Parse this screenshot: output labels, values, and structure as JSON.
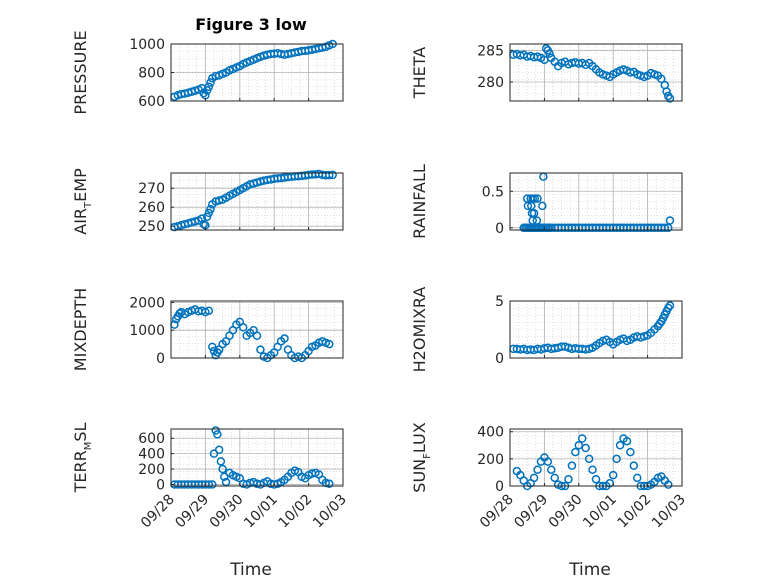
{
  "title": "Figure 3 low",
  "colors": {
    "series": "#0072BD",
    "axis": "#262626",
    "grid": "#c8c8c8",
    "background": "#ffffff"
  },
  "chart_data": [
    {
      "type": "scatter",
      "name": "PRESSURE",
      "ylabel": {
        "main": "PRESSURE",
        "sub": ""
      },
      "xlim": [
        0,
        5
      ],
      "ylim": [
        600,
        1000
      ],
      "yticks": [
        600,
        800,
        1000
      ],
      "ytick_labels": [
        "600",
        "800",
        "1000"
      ],
      "xtick_labels": [],
      "xlabel": "",
      "grid": true,
      "x": [
        0.1,
        0.2,
        0.3,
        0.4,
        0.5,
        0.6,
        0.7,
        0.8,
        0.9,
        0.95,
        1.0,
        1.05,
        1.1,
        1.15,
        1.2,
        1.3,
        1.4,
        1.5,
        1.6,
        1.7,
        1.8,
        1.9,
        2.0,
        2.1,
        2.2,
        2.3,
        2.4,
        2.5,
        2.6,
        2.7,
        2.8,
        2.9,
        3.0,
        3.1,
        3.2,
        3.3,
        3.4,
        3.5,
        3.6,
        3.7,
        3.8,
        3.9,
        4.0,
        4.1,
        4.2,
        4.3,
        4.4,
        4.5,
        4.6,
        4.7
      ],
      "y": [
        630,
        640,
        648,
        652,
        658,
        665,
        672,
        680,
        690,
        655,
        640,
        675,
        700,
        730,
        760,
        775,
        780,
        790,
        800,
        815,
        825,
        835,
        845,
        860,
        870,
        880,
        890,
        900,
        910,
        918,
        925,
        930,
        932,
        935,
        930,
        925,
        930,
        935,
        940,
        945,
        950,
        952,
        955,
        960,
        965,
        970,
        975,
        980,
        990,
        1000
      ]
    },
    {
      "type": "scatter",
      "name": "THETA",
      "ylabel": {
        "main": "THETA",
        "sub": ""
      },
      "xlim": [
        0,
        5
      ],
      "ylim": [
        277,
        286
      ],
      "yticks": [
        280,
        285
      ],
      "ytick_labels": [
        "280",
        "285"
      ],
      "xtick_labels": [],
      "xlabel": "",
      "grid": true,
      "x": [
        0.1,
        0.2,
        0.3,
        0.4,
        0.5,
        0.6,
        0.7,
        0.8,
        0.9,
        1.0,
        1.05,
        1.1,
        1.15,
        1.2,
        1.3,
        1.4,
        1.5,
        1.6,
        1.7,
        1.8,
        1.9,
        2.0,
        2.1,
        2.2,
        2.3,
        2.4,
        2.5,
        2.6,
        2.7,
        2.8,
        2.9,
        3.0,
        3.1,
        3.2,
        3.3,
        3.4,
        3.5,
        3.6,
        3.7,
        3.8,
        3.9,
        4.0,
        4.1,
        4.2,
        4.3,
        4.4,
        4.5,
        4.55,
        4.6,
        4.65
      ],
      "y": [
        284.3,
        284.4,
        284.2,
        284.3,
        284.0,
        284.1,
        283.9,
        284.0,
        283.8,
        283.5,
        285.3,
        285.0,
        284.5,
        283.8,
        283.2,
        282.5,
        283.0,
        283.2,
        282.8,
        283.0,
        283.1,
        282.9,
        283.0,
        282.7,
        283.0,
        282.5,
        282.0,
        281.5,
        281.2,
        281.0,
        280.8,
        281.2,
        281.5,
        281.8,
        282.0,
        281.8,
        281.5,
        281.6,
        281.2,
        281.0,
        280.8,
        281.0,
        281.4,
        281.2,
        281.0,
        280.5,
        279.5,
        278.5,
        277.8,
        277.4
      ]
    },
    {
      "type": "scatter",
      "name": "AIR_TEMP",
      "ylabel": {
        "main": "AIR",
        "sub": "T",
        "rest": "EMP"
      },
      "xlim": [
        0,
        5
      ],
      "ylim": [
        248,
        278
      ],
      "yticks": [
        250,
        260,
        270
      ],
      "ytick_labels": [
        "250",
        "260",
        "270"
      ],
      "xtick_labels": [],
      "xlabel": "",
      "grid": true,
      "x": [
        0.1,
        0.2,
        0.3,
        0.4,
        0.5,
        0.6,
        0.7,
        0.8,
        0.9,
        0.95,
        1.0,
        1.05,
        1.1,
        1.15,
        1.2,
        1.3,
        1.4,
        1.5,
        1.6,
        1.7,
        1.8,
        1.9,
        2.0,
        2.1,
        2.2,
        2.3,
        2.4,
        2.5,
        2.6,
        2.7,
        2.8,
        2.9,
        3.0,
        3.1,
        3.2,
        3.3,
        3.4,
        3.5,
        3.6,
        3.7,
        3.8,
        3.9,
        4.0,
        4.1,
        4.2,
        4.3,
        4.4,
        4.5,
        4.6,
        4.7
      ],
      "y": [
        249.5,
        250.0,
        250.5,
        251.0,
        251.5,
        252.0,
        252.5,
        253.0,
        254.0,
        251.0,
        250.5,
        255.0,
        257.0,
        259.0,
        261.5,
        263.0,
        263.5,
        264.0,
        265.0,
        266.0,
        267.0,
        268.0,
        269.0,
        270.0,
        271.0,
        272.0,
        272.5,
        273.0,
        273.5,
        274.0,
        274.3,
        274.6,
        275.0,
        275.2,
        275.3,
        275.6,
        275.8,
        276.0,
        276.2,
        276.3,
        276.5,
        276.7,
        277.0,
        277.2,
        277.3,
        277.5,
        277.0,
        276.8,
        276.9,
        277.0
      ]
    },
    {
      "type": "scatter",
      "name": "RAINFALL",
      "ylabel": {
        "main": "RAINFALL",
        "sub": ""
      },
      "xlim": [
        0,
        5
      ],
      "ylim": [
        -0.03,
        0.75
      ],
      "yticks": [
        0,
        0.5
      ],
      "ytick_labels": [
        "0",
        "0.5"
      ],
      "xtick_labels": [],
      "xlabel": "",
      "grid": true,
      "x": [
        0.4,
        0.45,
        0.5,
        0.55,
        0.6,
        0.65,
        0.7,
        0.75,
        0.8,
        0.85,
        0.9,
        0.95,
        1.0,
        1.05,
        1.1,
        1.15,
        1.2,
        1.3,
        1.4,
        1.5,
        1.6,
        1.7,
        1.8,
        1.9,
        2.0,
        2.1,
        2.2,
        2.3,
        2.4,
        2.5,
        2.6,
        2.7,
        2.8,
        2.9,
        3.0,
        3.1,
        3.2,
        3.3,
        3.4,
        3.5,
        3.6,
        3.7,
        3.8,
        3.9,
        4.0,
        4.1,
        4.2,
        4.3,
        4.4,
        4.5,
        4.6,
        4.65,
        0.5,
        0.52,
        0.6,
        0.62,
        0.64,
        0.66,
        0.66,
        0.7,
        0.72,
        0.78,
        0.8,
        0.94,
        0.97
      ],
      "y": [
        0,
        0,
        0,
        0,
        0,
        0,
        0,
        0,
        0,
        0,
        0,
        0,
        0,
        0,
        0,
        0,
        0,
        0,
        0,
        0,
        0,
        0,
        0,
        0,
        0,
        0,
        0,
        0,
        0,
        0,
        0,
        0,
        0,
        0,
        0,
        0,
        0,
        0,
        0,
        0,
        0,
        0,
        0,
        0,
        0,
        0,
        0,
        0,
        0,
        0,
        0,
        0.1,
        0.4,
        0.3,
        0.4,
        0.3,
        0.2,
        0.4,
        0.1,
        0.2,
        0.4,
        0.1,
        0.4,
        0.3,
        0.7
      ]
    },
    {
      "type": "scatter",
      "name": "MIXDEPTH",
      "ylabel": {
        "main": "MIXDEPTH",
        "sub": ""
      },
      "xlim": [
        0,
        5
      ],
      "ylim": [
        0,
        2050
      ],
      "yticks": [
        0,
        1000,
        2000
      ],
      "ytick_labels": [
        "0",
        "1000",
        "2000"
      ],
      "xtick_labels": [],
      "xlabel": "",
      "grid": true,
      "x": [
        0.1,
        0.15,
        0.2,
        0.25,
        0.3,
        0.4,
        0.5,
        0.6,
        0.7,
        0.8,
        0.9,
        1.0,
        1.1,
        1.2,
        1.25,
        1.3,
        1.35,
        1.4,
        1.5,
        1.6,
        1.7,
        1.8,
        1.9,
        2.0,
        2.1,
        2.2,
        2.3,
        2.4,
        2.5,
        2.6,
        2.7,
        2.8,
        2.9,
        3.0,
        3.1,
        3.2,
        3.3,
        3.4,
        3.5,
        3.6,
        3.7,
        3.8,
        3.9,
        4.0,
        4.1,
        4.2,
        4.3,
        4.4,
        4.5,
        4.6
      ],
      "y": [
        1200,
        1400,
        1500,
        1600,
        1650,
        1580,
        1650,
        1700,
        1750,
        1680,
        1700,
        1650,
        1700,
        400,
        250,
        100,
        200,
        300,
        500,
        600,
        800,
        1000,
        1200,
        1300,
        1100,
        800,
        900,
        1000,
        800,
        300,
        50,
        0,
        100,
        200,
        400,
        600,
        700,
        300,
        100,
        0,
        50,
        0,
        100,
        250,
        400,
        450,
        550,
        600,
        550,
        500
      ]
    },
    {
      "type": "scatter",
      "name": "H2OMIXRA",
      "ylabel": {
        "main": "H2OMIXRA",
        "sub": ""
      },
      "xlim": [
        0,
        5
      ],
      "ylim": [
        0,
        5
      ],
      "yticks": [
        0,
        5
      ],
      "ytick_labels": [
        "0",
        "5"
      ],
      "xtick_labels": [],
      "xlabel": "",
      "grid": true,
      "x": [
        0.1,
        0.2,
        0.3,
        0.4,
        0.5,
        0.6,
        0.7,
        0.8,
        0.9,
        1.0,
        1.1,
        1.2,
        1.3,
        1.4,
        1.5,
        1.6,
        1.7,
        1.8,
        1.9,
        2.0,
        2.1,
        2.2,
        2.3,
        2.4,
        2.5,
        2.6,
        2.7,
        2.8,
        2.9,
        3.0,
        3.1,
        3.2,
        3.3,
        3.4,
        3.5,
        3.6,
        3.7,
        3.8,
        3.9,
        4.0,
        4.1,
        4.2,
        4.3,
        4.35,
        4.4,
        4.45,
        4.5,
        4.55,
        4.6,
        4.65
      ],
      "y": [
        0.8,
        0.8,
        0.75,
        0.8,
        0.7,
        0.75,
        0.7,
        0.8,
        0.75,
        0.85,
        0.9,
        0.8,
        0.85,
        0.9,
        1.0,
        1.0,
        0.9,
        0.8,
        0.85,
        0.8,
        0.8,
        0.75,
        0.8,
        0.9,
        1.1,
        1.3,
        1.5,
        1.6,
        1.4,
        1.2,
        1.4,
        1.6,
        1.7,
        1.5,
        1.6,
        1.8,
        1.9,
        1.8,
        1.9,
        2.0,
        2.2,
        2.5,
        2.8,
        3.0,
        3.2,
        3.5,
        3.8,
        4.1,
        4.4,
        4.6
      ]
    },
    {
      "type": "scatter",
      "name": "TERR_MSL",
      "ylabel": {
        "main": "TERR",
        "sub": "M",
        "rest": "SL"
      },
      "xlim": [
        0,
        5
      ],
      "ylim": [
        -20,
        720
      ],
      "yticks": [
        0,
        200,
        400,
        600
      ],
      "ytick_labels": [
        "0",
        "200",
        "400",
        "600"
      ],
      "xtick_labels": [
        "09/28",
        "09/29",
        "09/30",
        "10/01",
        "10/02",
        "10/03"
      ],
      "xlabel": "Time",
      "grid": true,
      "x": [
        0.1,
        0.2,
        0.3,
        0.4,
        0.5,
        0.6,
        0.7,
        0.8,
        0.9,
        1.0,
        1.1,
        1.2,
        1.25,
        1.3,
        1.35,
        1.4,
        1.45,
        1.5,
        1.55,
        1.6,
        1.7,
        1.8,
        1.9,
        2.0,
        2.1,
        2.2,
        2.3,
        2.4,
        2.5,
        2.6,
        2.7,
        2.8,
        2.9,
        3.0,
        3.1,
        3.2,
        3.3,
        3.4,
        3.5,
        3.6,
        3.7,
        3.8,
        3.9,
        4.0,
        4.1,
        4.2,
        4.3,
        4.4,
        4.5,
        4.6
      ],
      "y": [
        0,
        0,
        0,
        0,
        0,
        0,
        0,
        0,
        0,
        0,
        0,
        0,
        400,
        700,
        650,
        450,
        300,
        200,
        100,
        30,
        150,
        120,
        100,
        80,
        10,
        0,
        20,
        30,
        10,
        0,
        20,
        40,
        10,
        0,
        10,
        30,
        60,
        100,
        150,
        180,
        160,
        100,
        80,
        120,
        140,
        150,
        130,
        60,
        20,
        10
      ]
    },
    {
      "type": "scatter",
      "name": "SUN_FLUX",
      "ylabel": {
        "main": "SUN",
        "sub": "F",
        "rest": "LUX"
      },
      "xlim": [
        0,
        5
      ],
      "ylim": [
        0,
        420
      ],
      "yticks": [
        0,
        200,
        400
      ],
      "ytick_labels": [
        "0",
        "200",
        "400"
      ],
      "xtick_labels": [
        "09/28",
        "09/29",
        "09/30",
        "10/01",
        "10/02",
        "10/03"
      ],
      "xlabel": "Time",
      "grid": true,
      "x": [
        0.2,
        0.3,
        0.4,
        0.5,
        0.6,
        0.7,
        0.8,
        0.9,
        1.0,
        1.1,
        1.2,
        1.3,
        1.4,
        1.5,
        1.6,
        1.7,
        1.8,
        1.9,
        2.0,
        2.1,
        2.2,
        2.3,
        2.4,
        2.5,
        2.6,
        2.7,
        2.8,
        2.9,
        3.0,
        3.1,
        3.2,
        3.3,
        3.4,
        3.5,
        3.6,
        3.7,
        3.8,
        3.9,
        4.0,
        4.1,
        4.2,
        4.3,
        4.4,
        4.5,
        4.6
      ],
      "y": [
        110,
        80,
        40,
        0,
        20,
        60,
        120,
        180,
        210,
        180,
        120,
        60,
        10,
        0,
        0,
        50,
        150,
        250,
        300,
        350,
        280,
        200,
        120,
        50,
        0,
        0,
        0,
        20,
        80,
        200,
        300,
        350,
        330,
        250,
        150,
        60,
        0,
        0,
        0,
        10,
        30,
        60,
        70,
        40,
        10
      ]
    }
  ]
}
